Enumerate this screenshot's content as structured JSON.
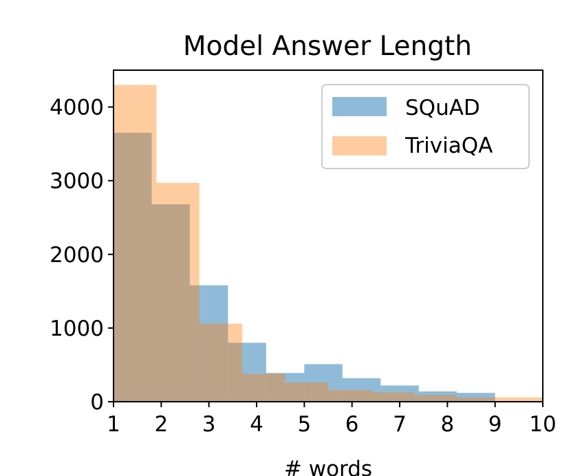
{
  "chart_data": {
    "type": "bar",
    "title": "Model Answer Length",
    "xlabel": "# words",
    "ylabel": "",
    "xlim": [
      1,
      10
    ],
    "ylim": [
      0,
      4500
    ],
    "xticks": [
      "1",
      "2",
      "3",
      "4",
      "5",
      "6",
      "7",
      "8",
      "9",
      "10"
    ],
    "yticks": [
      "0",
      "1000",
      "2000",
      "3000",
      "4000"
    ],
    "grid": false,
    "legend": "top-right",
    "series": [
      {
        "name": "SQuAD",
        "color": "#1f77b4",
        "opacity": 0.5,
        "bin_edges": [
          1,
          1.8,
          2.6,
          3.4,
          4.2,
          5.0,
          5.8,
          6.6,
          7.4,
          8.2,
          9.0
        ],
        "values": [
          3650,
          2680,
          1580,
          800,
          390,
          510,
          320,
          220,
          140,
          120
        ]
      },
      {
        "name": "TriviaQA",
        "color": "#ff7f0e",
        "opacity": 0.4,
        "bin_edges": [
          1,
          1.9,
          2.8,
          3.7,
          4.6,
          5.5,
          6.4,
          7.3,
          8.2,
          9.1,
          10.0
        ],
        "values": [
          4300,
          2970,
          1060,
          380,
          260,
          160,
          130,
          90,
          60,
          60
        ]
      }
    ]
  }
}
